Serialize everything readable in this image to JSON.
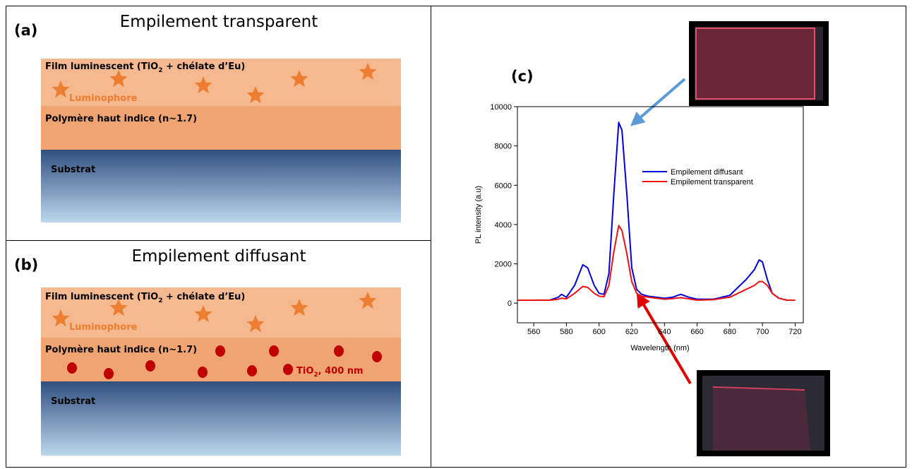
{
  "panel_a": {
    "label": "(a)",
    "title": "Empilement transparent",
    "film": [
      "Film luminescent (TiO",
      "2",
      " + chélate d’Eu)"
    ],
    "luminophore": "Luminophore",
    "polymer": "Polymère haut indice (n~1.7)",
    "substrate": "Substrat"
  },
  "panel_b": {
    "label": "(b)",
    "title": "Empilement diffusant",
    "film": [
      "Film luminescent (TiO",
      "2",
      " + chélate d’Eu)"
    ],
    "luminophore": "Luminophore",
    "polymer": "Polymère haut indice (n~1.7)",
    "particles": [
      "TiO",
      "2",
      ", 400 nm"
    ],
    "substrate": "Substrat"
  },
  "chart_data": {
    "type": "line",
    "label": "(c)",
    "x_label": "Wavelength (nm)",
    "y_label": "PL intensity (a.u)",
    "x": [
      550,
      560,
      570,
      575,
      577,
      580,
      585,
      590,
      593,
      597,
      600,
      603,
      606,
      609,
      612,
      614,
      617,
      620,
      623,
      626,
      630,
      640,
      645,
      650,
      655,
      660,
      670,
      680,
      685,
      690,
      695,
      698,
      700,
      703,
      706,
      710,
      715,
      720
    ],
    "series": [
      {
        "name": "Empilement diffusant",
        "color": "#0000e0",
        "values": [
          150,
          150,
          160,
          300,
          450,
          300,
          900,
          1950,
          1800,
          900,
          500,
          450,
          1500,
          5500,
          9200,
          8800,
          5500,
          1800,
          700,
          450,
          350,
          250,
          300,
          450,
          300,
          200,
          200,
          400,
          800,
          1200,
          1700,
          2200,
          2100,
          1200,
          500,
          250,
          150,
          150
        ]
      },
      {
        "name": "Empilement transparent",
        "color": "#ee1111",
        "values": [
          150,
          150,
          150,
          200,
          250,
          220,
          500,
          850,
          800,
          500,
          350,
          330,
          900,
          2600,
          3950,
          3700,
          2500,
          1100,
          500,
          350,
          300,
          200,
          230,
          280,
          220,
          150,
          180,
          300,
          500,
          700,
          900,
          1100,
          1100,
          900,
          500,
          250,
          150,
          150
        ]
      }
    ],
    "xlim": [
      550,
      725
    ],
    "xticks": [
      560,
      580,
      600,
      620,
      640,
      660,
      680,
      700,
      720
    ],
    "ylim": [
      -1000,
      10000
    ],
    "yticks": [
      0,
      2000,
      4000,
      6000,
      8000,
      10000
    ],
    "legend": "right"
  }
}
